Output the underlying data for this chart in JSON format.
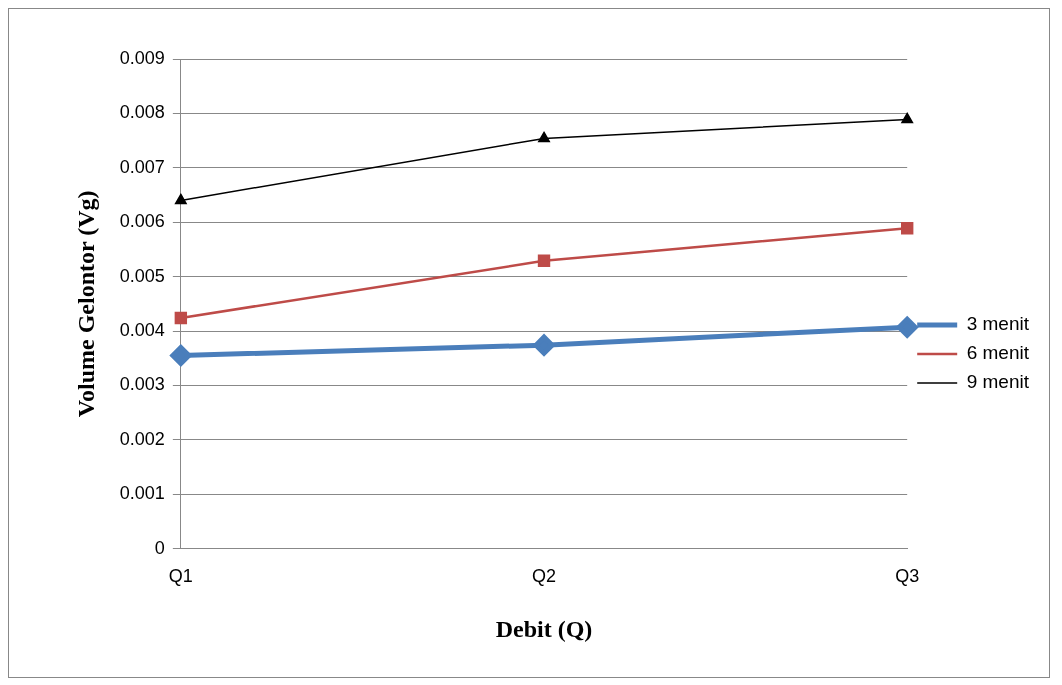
{
  "chart_data": {
    "type": "line",
    "xlabel": "Debit (Q)",
    "ylabel": "Volume Gelontor (Vg)",
    "categories": [
      "Q1",
      "Q2",
      "Q3"
    ],
    "series": [
      {
        "name": "3 menit",
        "color": "#4a7ebb",
        "values": [
          0.00355,
          0.00374,
          0.00407
        ],
        "marker": "diamond"
      },
      {
        "name": "6 menit",
        "color": "#be4b48",
        "values": [
          0.00424,
          0.00529,
          0.00589
        ],
        "marker": "square"
      },
      {
        "name": "9 menit",
        "color": "#000000",
        "values": [
          0.0064,
          0.00754,
          0.00789
        ],
        "marker": "triangle"
      }
    ],
    "ylim": [
      0,
      0.009
    ],
    "yticks": [
      0,
      0.001,
      0.002,
      0.003,
      0.004,
      0.005,
      0.006,
      0.007,
      0.008,
      0.009
    ],
    "grid": "y",
    "legend": "right"
  }
}
